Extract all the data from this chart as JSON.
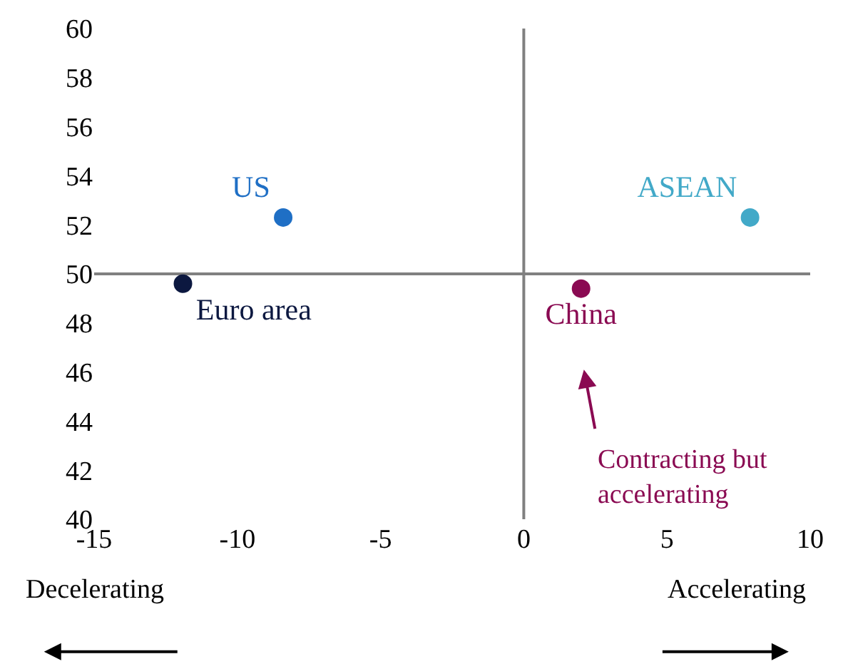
{
  "chart_data": {
    "type": "scatter",
    "series": [
      {
        "name": "US",
        "color": "#1f6fc5",
        "x": [
          -8.4
        ],
        "values": [
          52.3
        ]
      },
      {
        "name": "Euro area",
        "color": "#0c1840",
        "x": [
          -11.9
        ],
        "values": [
          49.6
        ]
      },
      {
        "name": "China",
        "color": "#8a0a52",
        "x": [
          2.0
        ],
        "values": [
          49.4
        ]
      },
      {
        "name": "ASEAN",
        "color": "#42a9c8",
        "x": [
          7.9
        ],
        "values": [
          52.3
        ]
      }
    ],
    "xlim": [
      -15,
      10
    ],
    "xticks": [
      -15,
      -10,
      -5,
      0,
      5,
      10
    ],
    "ylim": [
      40,
      60
    ],
    "yticks": [
      40,
      42,
      44,
      46,
      48,
      50,
      52,
      54,
      56,
      58,
      60
    ],
    "ref_lines": [
      {
        "axis": "x",
        "value": 0,
        "color": "#808080"
      },
      {
        "axis": "y",
        "value": 50,
        "color": "#808080"
      }
    ],
    "annotations": [
      "Contracting but\naccelerating",
      "Decelerating",
      "Accelerating"
    ],
    "marker": "circle",
    "grid": false
  }
}
